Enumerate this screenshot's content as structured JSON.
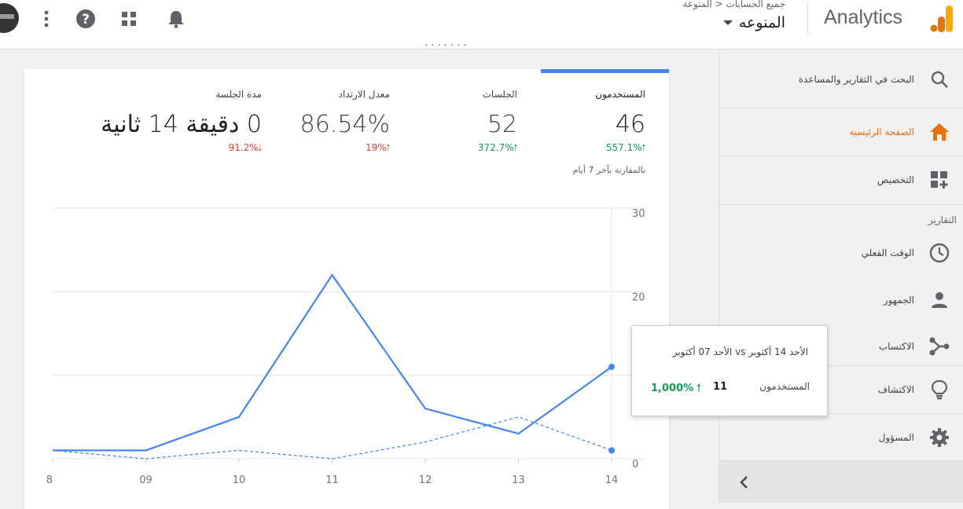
{
  "header": {
    "product_name": "Analytics",
    "breadcrumb": "جميع الحسابات < المنوعة",
    "account_name": "المنوعه",
    "icons": [
      "more-vert-icon",
      "help-icon",
      "apps-grid-icon",
      "notifications-bell-icon"
    ]
  },
  "sidebar": {
    "search": "البحث في التقارير والمساعدة",
    "home": "الصفحة الرئيسية",
    "customization": "التخصيص",
    "reports_heading": "التقارير",
    "realtime": "الوقت الفعلي",
    "audience": "الجمهور",
    "acquisition": "الاكتساب",
    "discover": "الاكتشاف",
    "admin": "المسؤول",
    "accent_color": "#e8710a"
  },
  "main": {
    "partial_heading": "· · ·  ·  · · ·"
  },
  "metrics": {
    "users": {
      "label": "المستخدمون",
      "value": "46",
      "change": "557.1%",
      "direction": "up"
    },
    "sessions": {
      "label": "الجلسات",
      "value": "52",
      "change": "372.7%",
      "direction": "up"
    },
    "bounce_rate": {
      "label": "معدل الارتداد",
      "value": "86.54%",
      "change": "19%",
      "direction": "up"
    },
    "session_duration": {
      "label": "مدة الجلسة",
      "value": "0 دقيقة 14 ثانية",
      "change": "91.2%",
      "direction": "down"
    },
    "comparison_note": "بالمقارنة بآخر 7 أيام",
    "up_arrow": "🠑",
    "down_arrow": "🠓"
  },
  "chart_data": {
    "type": "line",
    "x": [
      "8",
      "09",
      "10",
      "11",
      "12",
      "13",
      "14"
    ],
    "y_ticks": [
      "30",
      "20",
      "",
      "0"
    ],
    "ylim": [
      0,
      30
    ],
    "series": [
      {
        "values": [
          1,
          1,
          5,
          22,
          6,
          3,
          11
        ],
        "style": "solid",
        "color": "#4285f4"
      },
      {
        "values": [
          1,
          0,
          1,
          0,
          2,
          5,
          1
        ],
        "style": "dashed",
        "color": "#4285f4"
      }
    ],
    "grid": true
  },
  "tooltip": {
    "title": "الأحد 14 أكتوبر vs الأحد 07 أكتوبر",
    "metric_label": "المستخدمون",
    "value": "11",
    "change": "1,000% 🠑"
  }
}
